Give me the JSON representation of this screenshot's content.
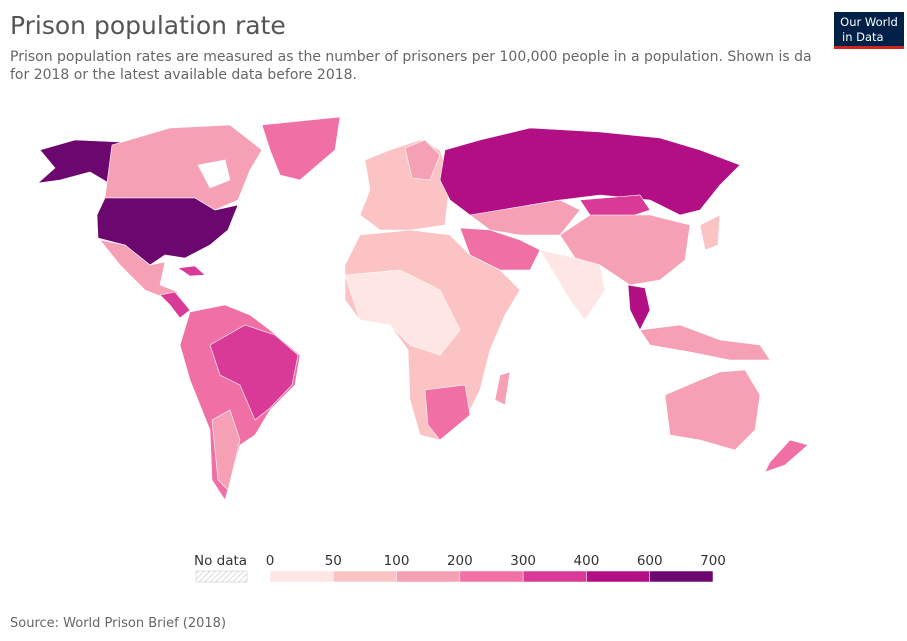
{
  "header": {
    "title": "Prison population rate",
    "subtitle_lines": [
      "Prison population rates are measured as the number of prisoners per 100,000 people in a population. Shown is da",
      "for 2018 or the latest available data before 2018."
    ],
    "logo_lines": [
      "Our World",
      "in Data"
    ]
  },
  "legend": {
    "no_data": "No data",
    "ticks": [
      0,
      50,
      100,
      200,
      300,
      400,
      600,
      700
    ],
    "colors": [
      "#fde6e3",
      "#fbc3c4",
      "#f6a0b6",
      "#f06fa4",
      "#d93a98",
      "#b30f85",
      "#6c0770"
    ]
  },
  "footer": {
    "source": "Source: World Prison Brief (2018)"
  }
}
